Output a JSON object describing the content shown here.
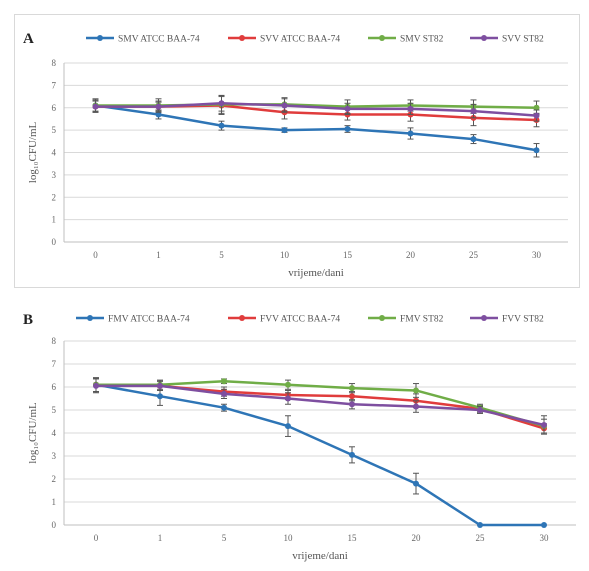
{
  "chart_data": [
    {
      "type": "line",
      "panel_label": "A",
      "x": [
        0,
        1,
        5,
        10,
        15,
        20,
        25,
        30
      ],
      "xlabel": "vrijeme/dani",
      "ylabel": "log₁₀CFU/mL",
      "ylim": [
        0,
        8
      ],
      "yticks": [
        0,
        1,
        2,
        3,
        4,
        5,
        6,
        7,
        8
      ],
      "grid": true,
      "legend": "top",
      "series": [
        {
          "name": "SMV ATCC BAA-74",
          "color": "#2e75b6",
          "values": [
            6.1,
            5.7,
            5.2,
            5.0,
            5.05,
            4.85,
            4.6,
            4.1
          ],
          "errors": [
            0.25,
            0.2,
            0.2,
            0.1,
            0.15,
            0.25,
            0.2,
            0.3
          ]
        },
        {
          "name": "SVV ATCC BAA-74",
          "color": "#e03c3c",
          "values": [
            6.05,
            6.05,
            6.1,
            5.8,
            5.7,
            5.7,
            5.55,
            5.45
          ],
          "errors": [
            0.25,
            0.2,
            0.4,
            0.3,
            0.25,
            0.3,
            0.35,
            0.3
          ]
        },
        {
          "name": "SMV ST82",
          "color": "#70ad47",
          "values": [
            6.1,
            6.1,
            6.15,
            6.15,
            6.05,
            6.1,
            6.05,
            6.0
          ],
          "errors": [
            0.3,
            0.3,
            0.4,
            0.3,
            0.3,
            0.25,
            0.3,
            0.3
          ]
        },
        {
          "name": "SVV ST82",
          "color": "#7e4fa0",
          "values": [
            6.05,
            6.05,
            6.2,
            6.1,
            5.95,
            5.95,
            5.85,
            5.65
          ],
          "errors": [
            0.25,
            0.25,
            0.35,
            0.3,
            0.25,
            0.25,
            0.3,
            0.25
          ]
        }
      ]
    },
    {
      "type": "line",
      "panel_label": "B",
      "x": [
        0,
        1,
        5,
        10,
        15,
        20,
        25,
        30
      ],
      "xlabel": "vrijeme/dani",
      "ylabel": "log₁₀CFU/mL",
      "ylim": [
        0,
        8
      ],
      "yticks": [
        0,
        1,
        2,
        3,
        4,
        5,
        6,
        7,
        8
      ],
      "grid": true,
      "legend": "top",
      "series": [
        {
          "name": "FMV ATCC BAA-74",
          "color": "#2e75b6",
          "values": [
            6.1,
            5.6,
            5.1,
            4.3,
            3.05,
            1.8,
            0.0,
            0.0
          ],
          "errors": [
            0.3,
            0.4,
            0.15,
            0.45,
            0.35,
            0.45,
            0.0,
            0.0
          ]
        },
        {
          "name": "FVV ATCC BAA-74",
          "color": "#e03c3c",
          "values": [
            6.1,
            6.05,
            5.8,
            5.65,
            5.6,
            5.4,
            5.05,
            4.2
          ],
          "errors": [
            0.3,
            0.2,
            0.2,
            0.2,
            0.2,
            0.3,
            0.15,
            0.2
          ]
        },
        {
          "name": "FMV ST82",
          "color": "#70ad47",
          "values": [
            6.1,
            6.1,
            6.25,
            6.1,
            5.95,
            5.85,
            5.1,
            4.3
          ],
          "errors": [
            0.3,
            0.2,
            0.1,
            0.2,
            0.2,
            0.3,
            0.15,
            0.3
          ]
        },
        {
          "name": "FVV ST82",
          "color": "#7e4fa0",
          "values": [
            6.05,
            6.05,
            5.7,
            5.5,
            5.25,
            5.15,
            5.0,
            4.35
          ],
          "errors": [
            0.3,
            0.2,
            0.2,
            0.25,
            0.2,
            0.25,
            0.15,
            0.4
          ]
        }
      ]
    }
  ]
}
